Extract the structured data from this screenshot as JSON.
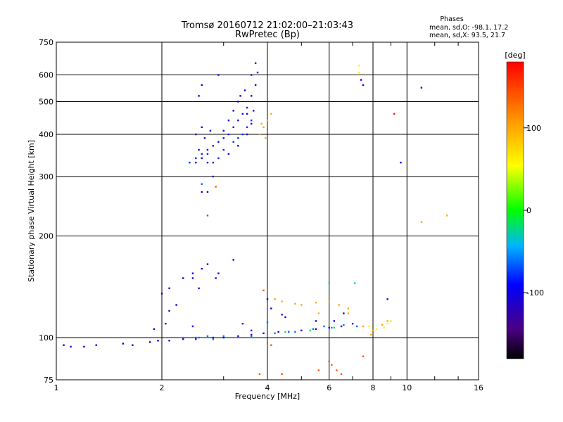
{
  "chart_data": {
    "type": "scatter",
    "title": "Tromsø 20160712 21:02:00–21:03:43",
    "subtitle": "RwPretec (Bp)",
    "xlabel": "Frequency [MHz]",
    "ylabel": "Stationary phase Virtual Height [km]",
    "x_scale": "log",
    "y_scale": "log",
    "xlim": [
      1,
      16
    ],
    "ylim": [
      75,
      750
    ],
    "x_ticks": [
      1,
      2,
      4,
      6,
      8,
      10,
      16
    ],
    "y_ticks": [
      75,
      100,
      200,
      300,
      400,
      500,
      600,
      750
    ],
    "grid": true,
    "phase_info": {
      "heading": "Phases",
      "line1": "mean, sd,O:  -98.1, 17.2",
      "line2": "mean, sd,X:  93.5, 21.7"
    },
    "colorbar": {
      "unit": "[deg]",
      "ticks": [
        -100,
        0,
        100
      ],
      "range": [
        -180,
        180
      ],
      "colormap": "rainbow (black-purple-blue-cyan-green-yellow-orange-red)"
    },
    "series": [
      {
        "phase": -100,
        "points": [
          [
            1.05,
            95
          ],
          [
            1.1,
            94
          ],
          [
            1.2,
            94
          ],
          [
            1.3,
            95
          ],
          [
            1.55,
            96
          ],
          [
            1.65,
            95
          ],
          [
            1.85,
            97
          ],
          [
            1.95,
            98
          ],
          [
            2.1,
            98
          ],
          [
            2.3,
            99
          ],
          [
            2.5,
            99
          ],
          [
            2.8,
            100
          ],
          [
            3.0,
            100
          ],
          [
            3.3,
            101
          ],
          [
            3.6,
            102
          ],
          [
            3.9,
            103
          ],
          [
            4.3,
            104
          ],
          [
            4.6,
            104
          ],
          [
            5.0,
            105
          ],
          [
            5.5,
            106
          ],
          [
            6.0,
            107
          ],
          [
            6.5,
            108
          ],
          [
            7.0,
            110
          ],
          [
            1.9,
            106
          ],
          [
            2.05,
            110
          ],
          [
            2.1,
            120
          ],
          [
            2.2,
            125
          ],
          [
            2.0,
            135
          ],
          [
            2.1,
            140
          ],
          [
            2.3,
            150
          ],
          [
            2.45,
            155
          ],
          [
            2.6,
            160
          ],
          [
            2.7,
            165
          ],
          [
            2.85,
            150
          ],
          [
            2.9,
            155
          ],
          [
            3.2,
            170
          ],
          [
            2.45,
            150
          ],
          [
            2.55,
            140
          ],
          [
            2.5,
            330
          ],
          [
            2.6,
            340
          ],
          [
            2.7,
            360
          ],
          [
            2.8,
            370
          ],
          [
            2.9,
            380
          ],
          [
            3.0,
            390
          ],
          [
            3.1,
            400
          ],
          [
            3.2,
            420
          ],
          [
            3.3,
            440
          ],
          [
            3.4,
            460
          ],
          [
            3.5,
            480
          ],
          [
            3.6,
            520
          ],
          [
            3.7,
            560
          ],
          [
            3.75,
            610
          ],
          [
            3.7,
            650
          ],
          [
            3.6,
            600
          ],
          [
            3.45,
            540
          ],
          [
            3.3,
            500
          ],
          [
            3.2,
            470
          ],
          [
            3.1,
            440
          ],
          [
            3.0,
            410
          ],
          [
            2.55,
            360
          ],
          [
            2.5,
            400
          ],
          [
            2.6,
            420
          ],
          [
            2.55,
            520
          ],
          [
            2.6,
            560
          ],
          [
            2.8,
            300
          ],
          [
            2.9,
            600
          ],
          [
            3.35,
            520
          ],
          [
            3.5,
            460
          ],
          [
            3.6,
            430
          ],
          [
            3.65,
            470
          ],
          [
            3.5,
            400
          ],
          [
            3.3,
            370
          ],
          [
            3.1,
            350
          ],
          [
            2.7,
            330
          ],
          [
            2.65,
            390
          ],
          [
            2.75,
            410
          ],
          [
            2.6,
            270
          ],
          [
            2.7,
            270
          ],
          [
            7.4,
            580
          ],
          [
            7.5,
            560
          ],
          [
            9.6,
            330
          ],
          [
            11.0,
            550
          ],
          [
            4.0,
            130
          ],
          [
            4.1,
            122
          ],
          [
            4.5,
            115
          ],
          [
            5.5,
            112
          ],
          [
            6.2,
            112
          ],
          [
            6.6,
            118
          ],
          [
            8.8,
            130
          ],
          [
            3.4,
            110
          ],
          [
            3.6,
            105
          ],
          [
            2.45,
            108
          ],
          [
            4.4,
            117
          ]
        ]
      },
      {
        "phase": -80,
        "points": [
          [
            2.4,
            330
          ],
          [
            2.5,
            340
          ],
          [
            2.7,
            350
          ],
          [
            2.9,
            340
          ],
          [
            3.0,
            360
          ],
          [
            3.2,
            380
          ],
          [
            3.4,
            400
          ],
          [
            3.5,
            420
          ],
          [
            3.3,
            390
          ],
          [
            3.6,
            440
          ],
          [
            2.6,
            350
          ],
          [
            2.8,
            330
          ]
        ]
      },
      {
        "phase": -60,
        "points": [
          [
            2.5,
            100
          ],
          [
            2.7,
            101
          ],
          [
            3.0,
            101
          ],
          [
            4.2,
            103
          ],
          [
            4.6,
            104
          ],
          [
            5.4,
            106
          ],
          [
            6.1,
            107
          ],
          [
            6.6,
            109
          ],
          [
            7.2,
            108
          ],
          [
            4.0,
            111
          ],
          [
            2.6,
            285
          ],
          [
            2.7,
            230
          ],
          [
            2.55,
            100
          ],
          [
            2.8,
            99
          ],
          [
            3.6,
            101
          ],
          [
            4.8,
            104
          ],
          [
            5.8,
            108
          ]
        ]
      },
      {
        "phase": -20,
        "points": [
          [
            6.0,
            145
          ],
          [
            7.1,
            145
          ],
          [
            4.5,
            104
          ],
          [
            5.3,
            105
          ],
          [
            6.2,
            107
          ]
        ]
      },
      {
        "phase": 60,
        "points": [
          [
            7.3,
            640
          ],
          [
            7.3,
            610
          ],
          [
            7.8,
            108
          ],
          [
            8.2,
            106
          ],
          [
            8.6,
            107
          ],
          [
            8.8,
            110
          ],
          [
            9.0,
            112
          ]
        ]
      },
      {
        "phase": 100,
        "points": [
          [
            3.8,
            400
          ],
          [
            3.9,
            420
          ],
          [
            4.0,
            440
          ],
          [
            4.1,
            460
          ],
          [
            3.95,
            390
          ],
          [
            3.85,
            430
          ],
          [
            4.2,
            130
          ],
          [
            4.4,
            128
          ],
          [
            4.8,
            126
          ],
          [
            5.0,
            125
          ],
          [
            5.5,
            127
          ],
          [
            6.0,
            128
          ],
          [
            6.4,
            125
          ],
          [
            6.8,
            122
          ],
          [
            7.5,
            108
          ],
          [
            8.0,
            105
          ],
          [
            8.5,
            109
          ],
          [
            8.8,
            112
          ],
          [
            11.0,
            220
          ],
          [
            13.0,
            230
          ],
          [
            5.6,
            118
          ],
          [
            6.8,
            118
          ],
          [
            7.9,
            102
          ]
        ]
      },
      {
        "phase": 140,
        "points": [
          [
            2.85,
            280
          ],
          [
            6.0,
            85
          ],
          [
            6.1,
            83
          ],
          [
            6.3,
            80
          ],
          [
            6.5,
            78
          ],
          [
            4.4,
            78
          ],
          [
            5.6,
            80
          ],
          [
            3.8,
            78
          ],
          [
            7.5,
            88
          ],
          [
            3.9,
            138
          ],
          [
            4.1,
            95
          ]
        ]
      },
      {
        "phase": 175,
        "points": [
          [
            9.2,
            460
          ]
        ]
      }
    ]
  }
}
